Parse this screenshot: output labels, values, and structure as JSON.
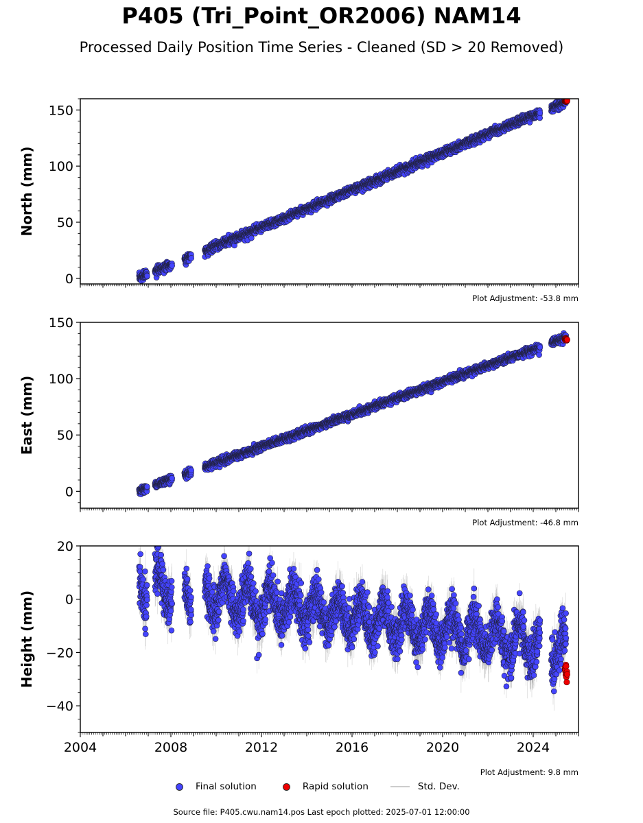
{
  "header": {
    "title": "P405 (Tri_Point_OR2006) NAM14",
    "subtitle": "Processed Daily Position Time Series - Cleaned (SD > 20 Removed)"
  },
  "legend": {
    "final_label": "Final solution",
    "rapid_label": "Rapid solution",
    "std_label": "Std. Dev."
  },
  "footer": {
    "source": "Source file: P405.cwu.nam14.pos  Last epoch plotted: 2025-07-01 12:00:00"
  },
  "colors": {
    "final": "#4444ff",
    "rapid": "#ee0000",
    "std": "#999999",
    "edge": "#222244"
  },
  "chart_data": [
    {
      "type": "scatter",
      "ylabel": "North (mm)",
      "adjustment": "Plot Adjustment: -53.8 mm",
      "xlim": [
        2004.0,
        2026.0
      ],
      "ylim": [
        -5,
        160
      ],
      "yticks": [
        0,
        50,
        100,
        150
      ],
      "yminor": 10,
      "xtick_labels": [],
      "segments": [
        [
          2006.6,
          2006.95
        ],
        [
          2007.3,
          2008.05
        ],
        [
          2008.6,
          2008.9
        ],
        [
          2009.5,
          2024.3
        ],
        [
          2024.8,
          2025.45
        ]
      ],
      "trend": {
        "t0": 2006.6,
        "v0": 0.5,
        "rate": 8.3
      },
      "noise": 1.8,
      "rapid": {
        "start": 2025.4,
        "end": 2025.5,
        "value": 158
      }
    },
    {
      "type": "scatter",
      "ylabel": "East (mm)",
      "adjustment": "Plot Adjustment: -46.8 mm",
      "xlim": [
        2004.0,
        2026.0
      ],
      "ylim": [
        -15,
        150
      ],
      "yticks": [
        0,
        50,
        100,
        150
      ],
      "yminor": 10,
      "xtick_labels": [],
      "segments": [
        [
          2006.6,
          2006.95
        ],
        [
          2007.3,
          2008.05
        ],
        [
          2008.6,
          2008.9
        ],
        [
          2009.5,
          2024.3
        ],
        [
          2024.8,
          2025.45
        ]
      ],
      "trend": {
        "t0": 2006.6,
        "v0": 0.5,
        "rate": 7.2
      },
      "noise": 1.6,
      "rapid": {
        "start": 2025.4,
        "end": 2025.5,
        "value": 135
      }
    },
    {
      "type": "scatter",
      "ylabel": "Height (mm)",
      "adjustment": "Plot Adjustment: 9.8 mm",
      "xlim": [
        2004.0,
        2026.0
      ],
      "ylim": [
        -50,
        20
      ],
      "yticks": [
        -40,
        -20,
        0,
        20
      ],
      "yminor": 5,
      "xticks": [
        2004,
        2008,
        2012,
        2016,
        2020,
        2024
      ],
      "xtick_labels": [
        "2004",
        "2008",
        "2012",
        "2016",
        "2020",
        "2024"
      ],
      "segments": [
        [
          2006.6,
          2006.95
        ],
        [
          2007.3,
          2008.05
        ],
        [
          2008.6,
          2008.9
        ],
        [
          2009.5,
          2024.3
        ],
        [
          2024.8,
          2025.45
        ]
      ],
      "trend": {
        "t0": 2006.6,
        "v0": 6,
        "rate": -1.3
      },
      "seasonal_amp": 6,
      "noise": 4,
      "rapid": {
        "start": 2025.4,
        "end": 2025.5,
        "value": -27
      }
    }
  ]
}
